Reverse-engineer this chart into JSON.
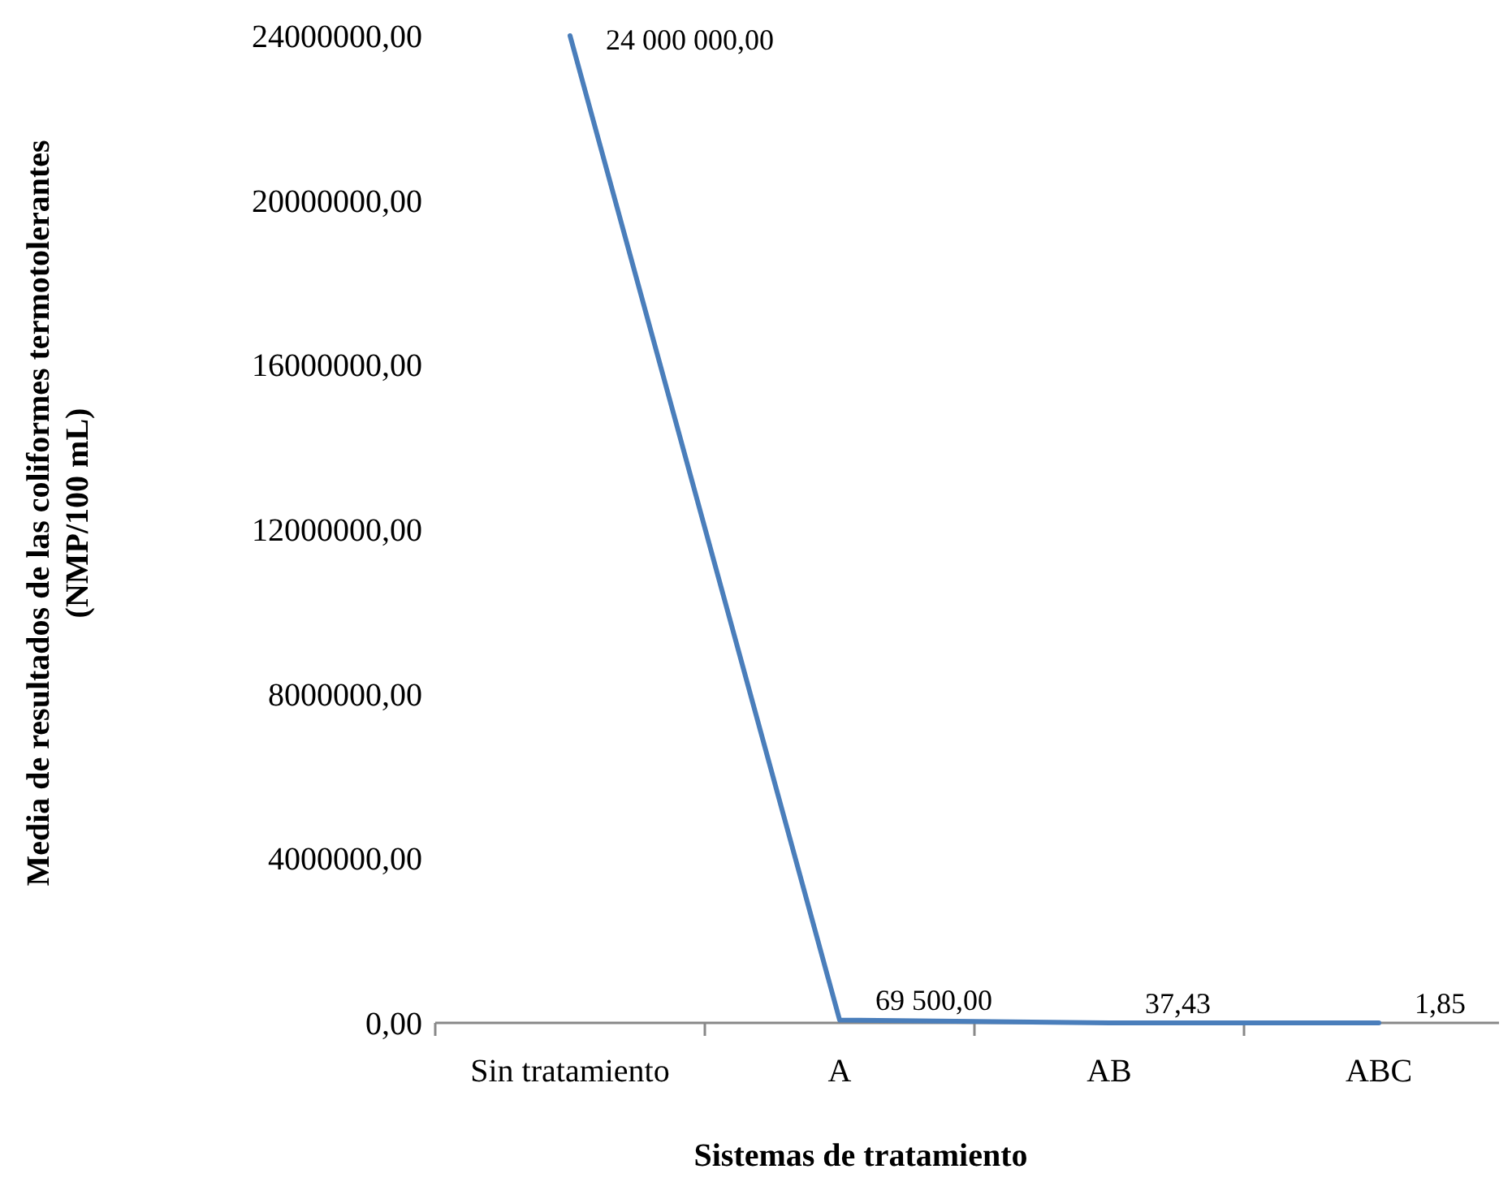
{
  "chart_data": {
    "type": "line",
    "xlabel": "Sistemas de tratamiento",
    "ylabel": "Media de resultados de las coliformes termotolerantes\n(NMP/100 mL)",
    "categories": [
      "Sin tratamiento",
      "A",
      "AB",
      "ABC"
    ],
    "series": [
      {
        "color": "#4a7ebb",
        "values": [
          24000000,
          69500,
          37.43,
          1.85
        ],
        "value_labels": [
          "24 000 000,00",
          "69 500,00",
          "37,43",
          "1,85"
        ]
      }
    ],
    "ylim": [
      0,
      24000000
    ],
    "yticks": [
      {
        "value": 0,
        "label": "0,00"
      },
      {
        "value": 4000000,
        "label": "4000000,00"
      },
      {
        "value": 8000000,
        "label": "8000000,00"
      },
      {
        "value": 12000000,
        "label": "12000000,00"
      },
      {
        "value": 16000000,
        "label": "16000000,00"
      },
      {
        "value": 20000000,
        "label": "20000000,00"
      },
      {
        "value": 24000000,
        "label": "24000000,00"
      }
    ],
    "grid": false,
    "marker": "none",
    "line_style": "solid"
  }
}
